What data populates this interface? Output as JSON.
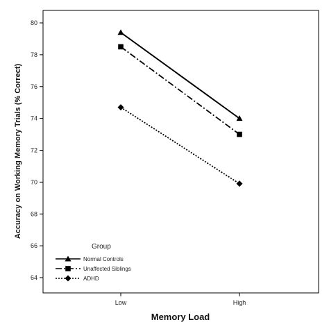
{
  "chart_data": {
    "type": "line",
    "title": "",
    "xlabel": "Memory Load",
    "ylabel": "Accuracy on Working Memory Trials (% Correct)",
    "categories": [
      "Low",
      "High"
    ],
    "ylim": [
      63.5,
      80.5
    ],
    "yticks": [
      64,
      66,
      68,
      70,
      72,
      74,
      76,
      78,
      80
    ],
    "grid": false,
    "legend": {
      "title": "Group",
      "placement": "bottom-left"
    },
    "series": [
      {
        "name": "Normal Controls",
        "values": [
          79.4,
          74.0
        ],
        "marker": "triangle",
        "dash": "solid",
        "color": "#000000"
      },
      {
        "name": "Unaffected Siblings",
        "values": [
          78.5,
          73.0
        ],
        "marker": "square",
        "dash": "dashdot",
        "color": "#000000"
      },
      {
        "name": "ADHD",
        "values": [
          74.7,
          69.9
        ],
        "marker": "diamond",
        "dash": "dotted",
        "color": "#000000"
      }
    ]
  }
}
